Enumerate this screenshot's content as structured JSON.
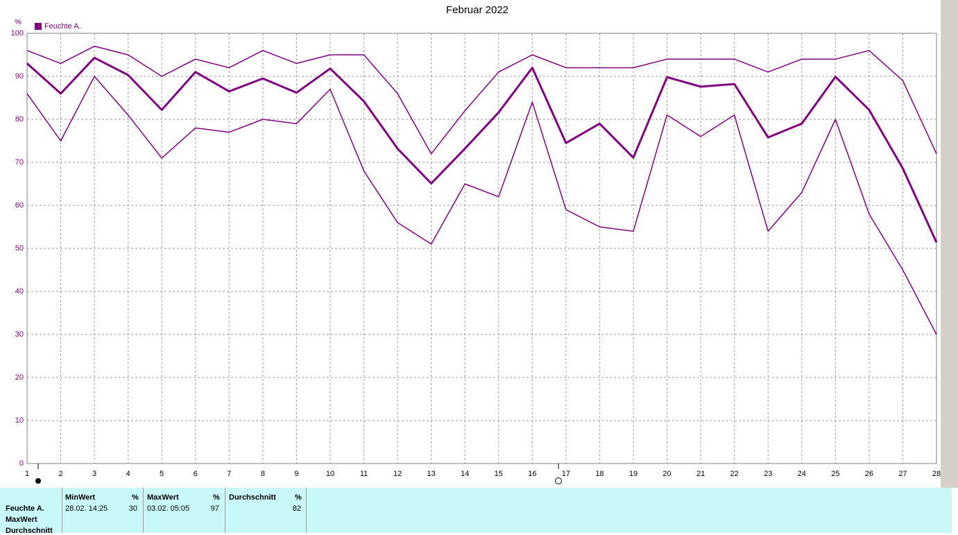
{
  "chart_data": {
    "type": "line",
    "title": "Februar 2022",
    "y_unit": "%",
    "x": [
      1,
      2,
      3,
      4,
      5,
      6,
      7,
      8,
      9,
      10,
      11,
      12,
      13,
      14,
      15,
      16,
      17,
      18,
      19,
      20,
      21,
      22,
      23,
      24,
      25,
      26,
      27,
      28
    ],
    "series": [
      {
        "color": "#800080",
        "line_width": 1.5,
        "values": [
          96,
          93,
          97,
          95,
          90,
          94,
          92,
          96,
          93,
          95,
          95,
          86,
          72,
          82,
          91,
          95,
          92,
          92,
          92,
          94,
          94,
          94,
          91,
          94,
          94,
          96,
          89,
          72
        ]
      },
      {
        "name": "Feuchte A.",
        "color": "#800080",
        "line_width": 3,
        "values": [
          93,
          86,
          94.3,
          90.3,
          82.2,
          91,
          86.5,
          89.5,
          86.2,
          91.8,
          84.2,
          73.2,
          65.1,
          73.2,
          81.6,
          92,
          74.5,
          79,
          71.1,
          89.8,
          87.6,
          88.2,
          75.8,
          79,
          89.9,
          82.2,
          68.6,
          51.4
        ]
      },
      {
        "color": "#800080",
        "line_width": 1.5,
        "values": [
          86,
          75,
          90,
          81,
          71,
          78,
          77,
          80,
          79,
          87,
          68,
          56,
          51,
          65,
          62,
          84,
          59,
          55,
          54,
          81,
          76,
          81,
          54,
          63,
          80,
          58,
          45,
          30
        ]
      }
    ],
    "xlim": [
      1,
      28
    ],
    "xticks": [
      1,
      2,
      3,
      4,
      5,
      6,
      7,
      8,
      9,
      10,
      11,
      12,
      13,
      14,
      15,
      16,
      17,
      18,
      19,
      20,
      21,
      22,
      23,
      24,
      25,
      26,
      27,
      28
    ],
    "ylim": [
      0,
      100
    ],
    "yticks": [
      0,
      10,
      20,
      30,
      40,
      50,
      60,
      70,
      80,
      90,
      100
    ],
    "grid": true
  },
  "summary": {
    "row_labels": [
      "Feuchte A.",
      "MaxWert",
      "Durchschnitt"
    ],
    "columns": [
      {
        "header": "MinWert",
        "unit": "%",
        "time": "28.02.  14:25",
        "value": 30
      },
      {
        "header": "MaxWert",
        "unit": "%",
        "time": "03.02.  05:05",
        "value": 97
      },
      {
        "header": "Durchschnitt",
        "unit": "%",
        "value": 82
      }
    ]
  }
}
